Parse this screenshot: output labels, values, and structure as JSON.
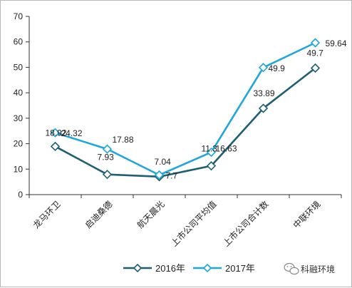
{
  "chart_data": {
    "type": "line",
    "categories": [
      "龙马环卫",
      "启迪桑德",
      "航天晨光",
      "上市公司平均值",
      "上市公司合计数",
      "中联环境"
    ],
    "series": [
      {
        "name": "2016年",
        "values": [
          18.92,
          7.93,
          7.04,
          11.3,
          33.89,
          49.7
        ],
        "labels": [
          "18.92",
          "7.93",
          "7.04",
          "11.3",
          "33.89",
          "49.7"
        ],
        "color": "#1f5f73"
      },
      {
        "name": "2017年",
        "values": [
          24.32,
          17.88,
          7.7,
          16.63,
          49.9,
          59.64
        ],
        "labels": [
          "24.32",
          "17.88",
          "7.7",
          "16.63",
          "49.9",
          "59.64"
        ],
        "color": "#1fa7d9"
      }
    ],
    "ylim": [
      0,
      70
    ],
    "yticks": [
      0,
      10,
      20,
      30,
      40,
      50,
      60,
      70
    ],
    "grid": false,
    "legend_position": "bottom",
    "title": "",
    "xlabel": "",
    "ylabel": ""
  },
  "watermark": {
    "text": "科融环境"
  }
}
